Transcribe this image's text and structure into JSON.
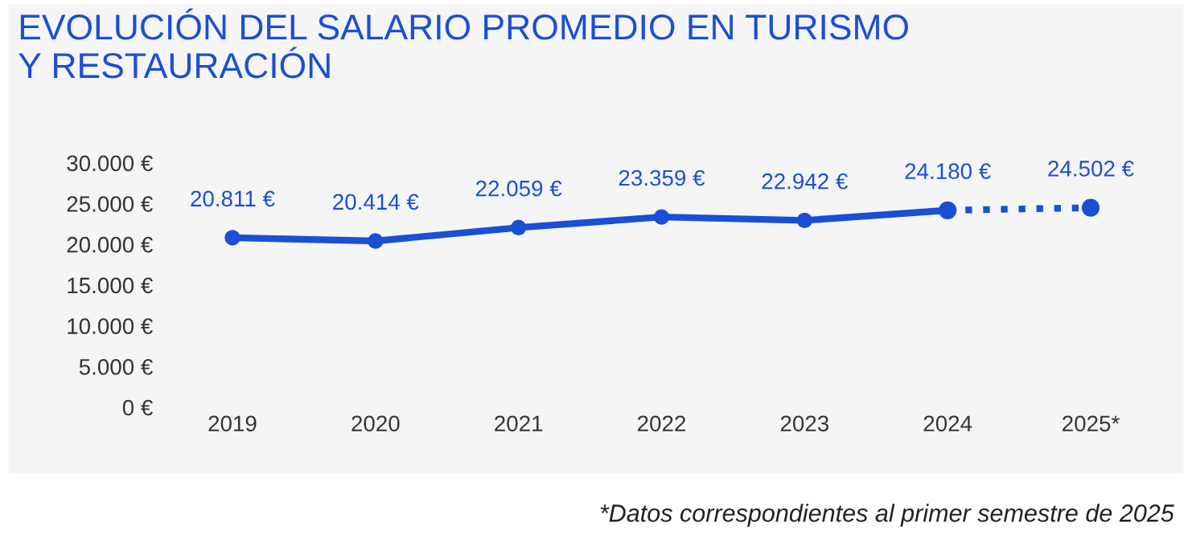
{
  "chart_data": {
    "type": "line",
    "title": "EVOLUCIÓN DEL SALARIO PROMEDIO EN TURISMO\nY RESTAURACIÓN",
    "categories": [
      "2019",
      "2020",
      "2021",
      "2022",
      "2023",
      "2024",
      "2025*"
    ],
    "series": [
      {
        "color": "#1a4fd6",
        "values": [
          20811,
          20414,
          22059,
          23359,
          22942,
          24180,
          null
        ],
        "value_labels": [
          "20.811 €",
          "20.414 €",
          "22.059 €",
          "23.359 €",
          "22.942 €",
          "24.180 €",
          null
        ],
        "line_style": "solid",
        "marker": "circle"
      },
      {
        "color": "#1a4fd6",
        "values": [
          null,
          null,
          null,
          null,
          null,
          24180,
          24502
        ],
        "value_labels": [
          null,
          null,
          null,
          null,
          null,
          null,
          "24.502 €"
        ],
        "line_style": "dotted",
        "marker": "circle"
      }
    ],
    "ylim": [
      0,
      30000
    ],
    "yticks": [
      {
        "value": 0,
        "label": "0 €"
      },
      {
        "value": 5000,
        "label": "5.000 €"
      },
      {
        "value": 10000,
        "label": "10.000 €"
      },
      {
        "value": 15000,
        "label": "15.000 €"
      },
      {
        "value": 20000,
        "label": "20.000 €"
      },
      {
        "value": 25000,
        "label": "25.000 €"
      },
      {
        "value": 30000,
        "label": "30.000 €"
      }
    ],
    "grid": false,
    "annotations": [
      "*Datos correspondientes al primer semestre de 2025"
    ]
  }
}
